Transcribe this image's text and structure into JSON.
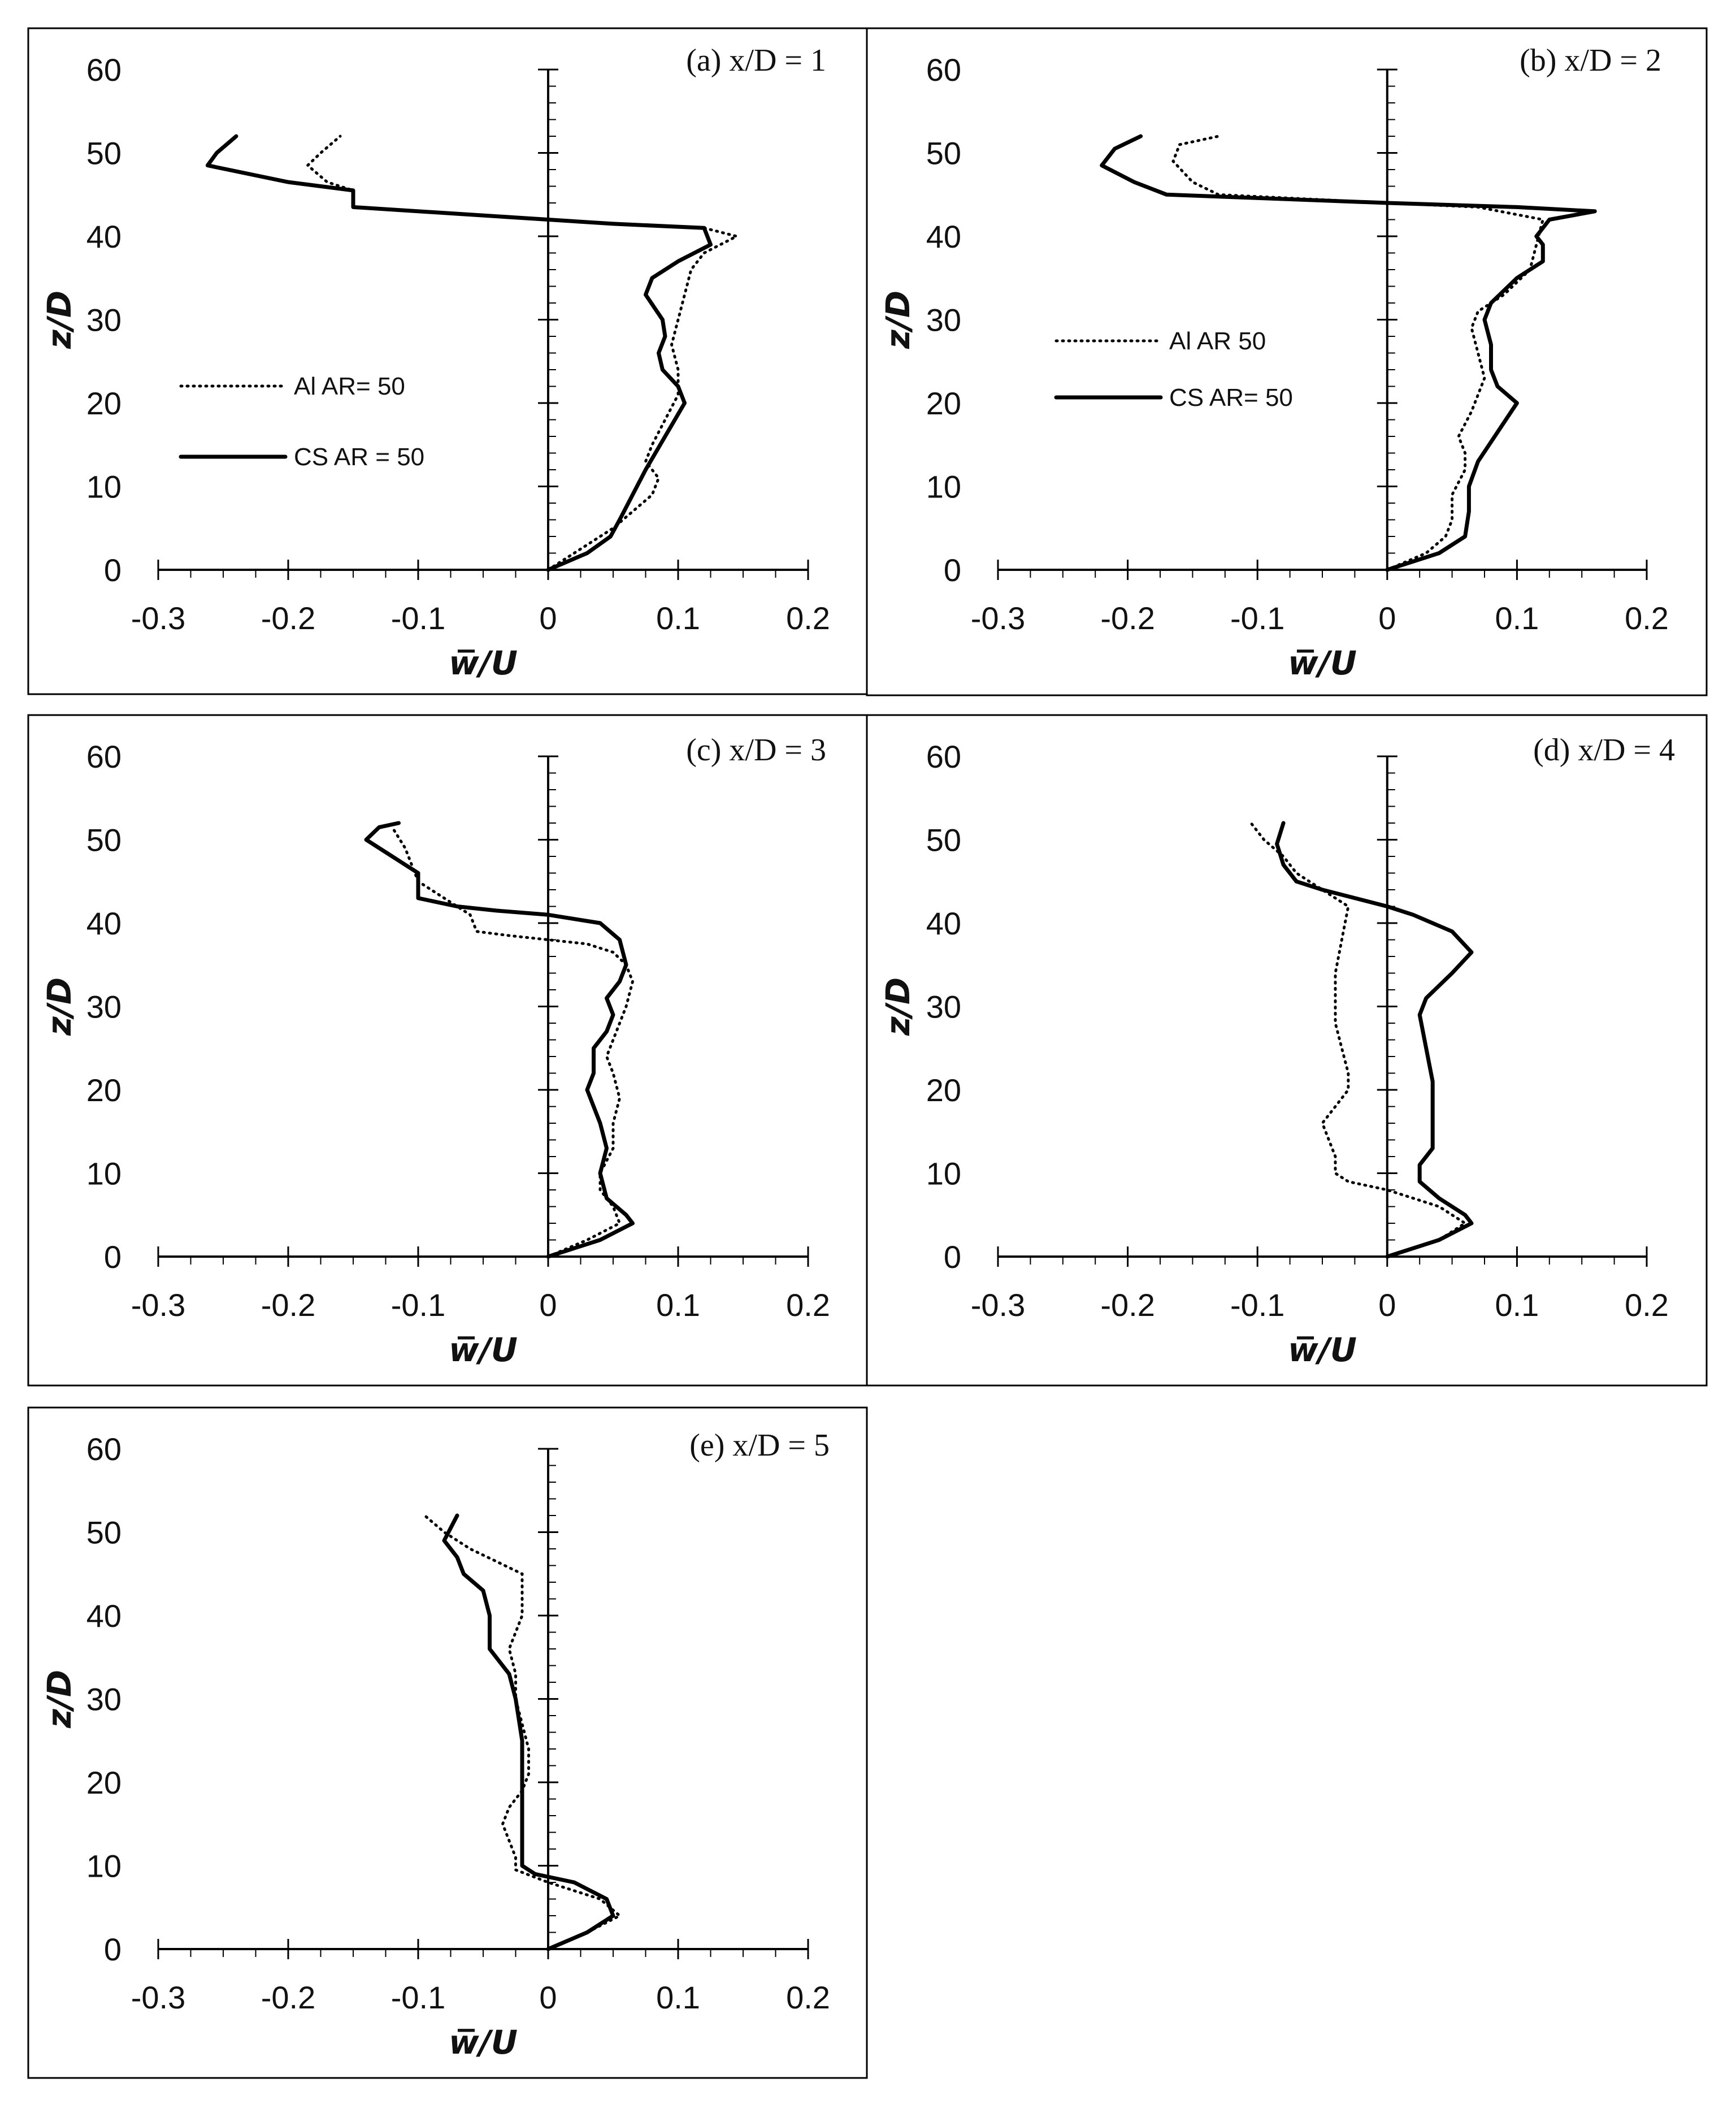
{
  "figure": {
    "xlabel": "w̅/U",
    "ylabel": "z/D"
  },
  "chart_data": [
    {
      "type": "line",
      "title": "(a) x/D = 1",
      "xlabel": "w̅/U",
      "ylabel": "z/D",
      "xlim": [
        -0.3,
        0.2
      ],
      "ylim": [
        0,
        60
      ],
      "x_ticks": [
        "-0.3",
        "-0.2",
        "-0.1",
        "0",
        "0.1",
        "0.2"
      ],
      "y_ticks": [
        "0",
        "10",
        "20",
        "30",
        "40",
        "50",
        "60"
      ],
      "grid": false,
      "legend": "left",
      "series": [
        {
          "name": "Al AR= 50",
          "style": "dotted",
          "x": [
            0,
            0.03,
            0.05,
            0.065,
            0.08,
            0.085,
            0.075,
            0.08,
            0.09,
            0.1,
            0.1,
            0.095,
            0.1,
            0.105,
            0.11,
            0.12,
            0.145,
            0.12,
            0.05,
            0,
            -0.15,
            -0.15,
            -0.17,
            -0.185,
            -0.175,
            -0.16
          ],
          "y": [
            0,
            3,
            5,
            7,
            9,
            11,
            13,
            15,
            18,
            21,
            24,
            27,
            30,
            33,
            36,
            38,
            40,
            41,
            41.5,
            42,
            43.5,
            45.5,
            46.5,
            48.5,
            50,
            52
          ]
        },
        {
          "name": "CS AR = 50",
          "style": "solid",
          "x": [
            0,
            0.03,
            0.048,
            0.055,
            0.065,
            0.075,
            0.09,
            0.105,
            0.1,
            0.088,
            0.085,
            0.09,
            0.088,
            0.075,
            0.08,
            0.1,
            0.125,
            0.12,
            0.05,
            0,
            -0.15,
            -0.15,
            -0.2,
            -0.262,
            -0.255,
            -0.24
          ],
          "y": [
            0,
            2,
            4,
            6,
            9,
            12,
            16,
            20,
            22,
            24,
            26,
            28,
            30,
            33,
            35,
            37,
            39,
            41,
            41.5,
            42,
            43.5,
            45.5,
            46.5,
            48.5,
            50,
            52
          ]
        }
      ]
    },
    {
      "type": "line",
      "title": "(b) x/D = 2",
      "xlabel": "w̅/U",
      "ylabel": "z/D",
      "xlim": [
        -0.3,
        0.2
      ],
      "ylim": [
        0,
        60
      ],
      "x_ticks": [
        "-0.3",
        "-0.2",
        "-0.1",
        "0",
        "0.1",
        "0.2"
      ],
      "y_ticks": [
        "0",
        "10",
        "20",
        "30",
        "40",
        "50",
        "60"
      ],
      "grid": false,
      "legend": "left",
      "series": [
        {
          "name": "Al AR 50",
          "style": "dotted",
          "x": [
            0,
            0.03,
            0.045,
            0.05,
            0.05,
            0.06,
            0.06,
            0.055,
            0.065,
            0.07,
            0.075,
            0.07,
            0.065,
            0.07,
            0.09,
            0.11,
            0.115,
            0.12,
            0.07,
            0,
            -0.13,
            -0.15,
            -0.165,
            -0.16,
            -0.13
          ],
          "y": [
            0,
            2,
            4,
            6,
            9,
            12,
            14,
            16,
            19,
            21,
            23,
            26,
            29,
            31,
            33,
            36,
            39,
            42,
            43.5,
            44,
            45,
            46.5,
            49,
            51,
            52
          ]
        },
        {
          "name": "CS AR= 50",
          "style": "solid",
          "x": [
            0,
            0.04,
            0.06,
            0.063,
            0.063,
            0.07,
            0.1,
            0.085,
            0.08,
            0.08,
            0.075,
            0.08,
            0.1,
            0.12,
            0.12,
            0.115,
            0.125,
            0.16,
            0.1,
            0,
            -0.17,
            -0.195,
            -0.22,
            -0.21,
            -0.19
          ],
          "y": [
            0,
            2,
            4,
            7,
            10,
            13,
            20,
            22,
            24,
            27,
            30,
            32,
            35,
            37,
            39,
            40,
            42,
            43,
            43.5,
            44,
            45,
            46.5,
            48.5,
            50.5,
            52
          ]
        }
      ]
    },
    {
      "type": "line",
      "title": "(c) x/D = 3",
      "xlabel": "w̅/U",
      "ylabel": "z/D",
      "xlim": [
        -0.3,
        0.2
      ],
      "ylim": [
        0,
        60
      ],
      "x_ticks": [
        "-0.3",
        "-0.2",
        "-0.1",
        "0",
        "0.1",
        "0.2"
      ],
      "y_ticks": [
        "0",
        "10",
        "20",
        "30",
        "40",
        "50",
        "60"
      ],
      "grid": false,
      "legend": "none",
      "series": [
        {
          "name": "Al AR= 50",
          "style": "dotted",
          "x": [
            0,
            0.03,
            0.055,
            0.05,
            0.04,
            0.04,
            0.05,
            0.05,
            0.055,
            0.05,
            0.045,
            0.05,
            0.055,
            0.06,
            0.065,
            0.06,
            0.05,
            0.03,
            0,
            -0.03,
            -0.055,
            -0.06,
            -0.08,
            -0.1,
            -0.105,
            -0.11,
            -0.12
          ],
          "y": [
            0,
            2,
            4,
            6,
            8,
            10,
            13,
            16,
            19,
            22,
            24,
            26,
            28,
            30,
            33,
            35,
            36.5,
            37.5,
            38,
            38.5,
            39,
            41,
            43,
            45,
            47,
            49,
            51.5
          ]
        },
        {
          "name": "CS AR= 50",
          "style": "solid",
          "x": [
            0,
            0.04,
            0.065,
            0.06,
            0.045,
            0.04,
            0.045,
            0.04,
            0.03,
            0.035,
            0.035,
            0.045,
            0.05,
            0.045,
            0.055,
            0.06,
            0.055,
            0.04,
            0,
            -0.04,
            -0.07,
            -0.1,
            -0.1,
            -0.12,
            -0.14,
            -0.13,
            -0.115
          ],
          "y": [
            0,
            2,
            4,
            5,
            7,
            10,
            13,
            16,
            20,
            22,
            25,
            27,
            29,
            31,
            33,
            35,
            38,
            40,
            41,
            41.5,
            42,
            43,
            46,
            48,
            50,
            51.5,
            52
          ]
        }
      ]
    },
    {
      "type": "line",
      "title": "(d) x/D = 4",
      "xlabel": "w̅/U",
      "ylabel": "z/D",
      "xlim": [
        -0.3,
        0.2
      ],
      "ylim": [
        0,
        60
      ],
      "x_ticks": [
        "-0.3",
        "-0.2",
        "-0.1",
        "0",
        "0.1",
        "0.2"
      ],
      "y_ticks": [
        "0",
        "10",
        "20",
        "30",
        "40",
        "50",
        "60"
      ],
      "grid": false,
      "legend": "none",
      "series": [
        {
          "name": "Al AR= 50",
          "style": "dotted",
          "x": [
            0,
            0.04,
            0.06,
            0.04,
            0,
            -0.03,
            -0.04,
            -0.04,
            -0.045,
            -0.05,
            -0.04,
            -0.03,
            -0.03,
            -0.035,
            -0.04,
            -0.04,
            -0.04,
            -0.035,
            -0.03,
            -0.06,
            -0.07,
            -0.08,
            -0.095,
            -0.105
          ],
          "y": [
            0,
            2,
            4,
            6,
            8,
            9,
            10,
            12,
            14,
            16,
            18,
            20,
            22,
            25,
            28,
            31,
            34,
            38,
            42,
            45,
            46,
            48,
            50,
            52
          ]
        },
        {
          "name": "CS AR= 50",
          "style": "solid",
          "x": [
            0,
            0.04,
            0.065,
            0.06,
            0.04,
            0.025,
            0.025,
            0.035,
            0.035,
            0.035,
            0.03,
            0.025,
            0.03,
            0.05,
            0.065,
            0.05,
            0.02,
            0,
            -0.05,
            -0.07,
            -0.08,
            -0.085,
            -0.08
          ],
          "y": [
            0,
            2,
            4,
            5,
            7,
            9,
            11,
            13,
            17,
            21,
            25,
            29,
            31,
            34,
            36.5,
            39,
            41,
            42,
            44,
            45,
            47,
            49.5,
            52
          ]
        }
      ]
    },
    {
      "type": "line",
      "title": "(e) x/D = 5",
      "xlabel": "w̅/U",
      "ylabel": "z/D",
      "xlim": [
        -0.3,
        0.2
      ],
      "ylim": [
        0,
        60
      ],
      "x_ticks": [
        "-0.3",
        "-0.2",
        "-0.1",
        "0",
        "0.1",
        "0.2"
      ],
      "y_ticks": [
        "0",
        "10",
        "20",
        "30",
        "40",
        "50",
        "60"
      ],
      "grid": false,
      "legend": "none",
      "series": [
        {
          "name": "Al AR= 50",
          "style": "dotted",
          "x": [
            0,
            0.03,
            0.055,
            0.04,
            0,
            -0.025,
            -0.025,
            -0.03,
            -0.035,
            -0.03,
            -0.02,
            -0.015,
            -0.015,
            -0.02,
            -0.025,
            -0.025,
            -0.03,
            -0.02,
            -0.02,
            -0.04,
            -0.06,
            -0.08,
            -0.095
          ],
          "y": [
            0,
            2,
            4,
            6,
            8,
            9.5,
            11,
            13,
            15,
            17,
            19,
            21,
            24,
            27,
            30,
            33,
            36,
            40,
            45,
            46.5,
            48,
            50,
            52
          ]
        },
        {
          "name": "CS AR= 50",
          "style": "solid",
          "x": [
            0,
            0.03,
            0.05,
            0.045,
            0.02,
            -0.01,
            -0.02,
            -0.02,
            -0.02,
            -0.02,
            -0.02,
            -0.025,
            -0.03,
            -0.045,
            -0.045,
            -0.05,
            -0.065,
            -0.07,
            -0.08,
            -0.075,
            -0.07
          ],
          "y": [
            0,
            2,
            4,
            6,
            8,
            9,
            10,
            12,
            16,
            20,
            25,
            30,
            33,
            36,
            40,
            43,
            45,
            47,
            49,
            50.5,
            52
          ]
        }
      ]
    }
  ]
}
